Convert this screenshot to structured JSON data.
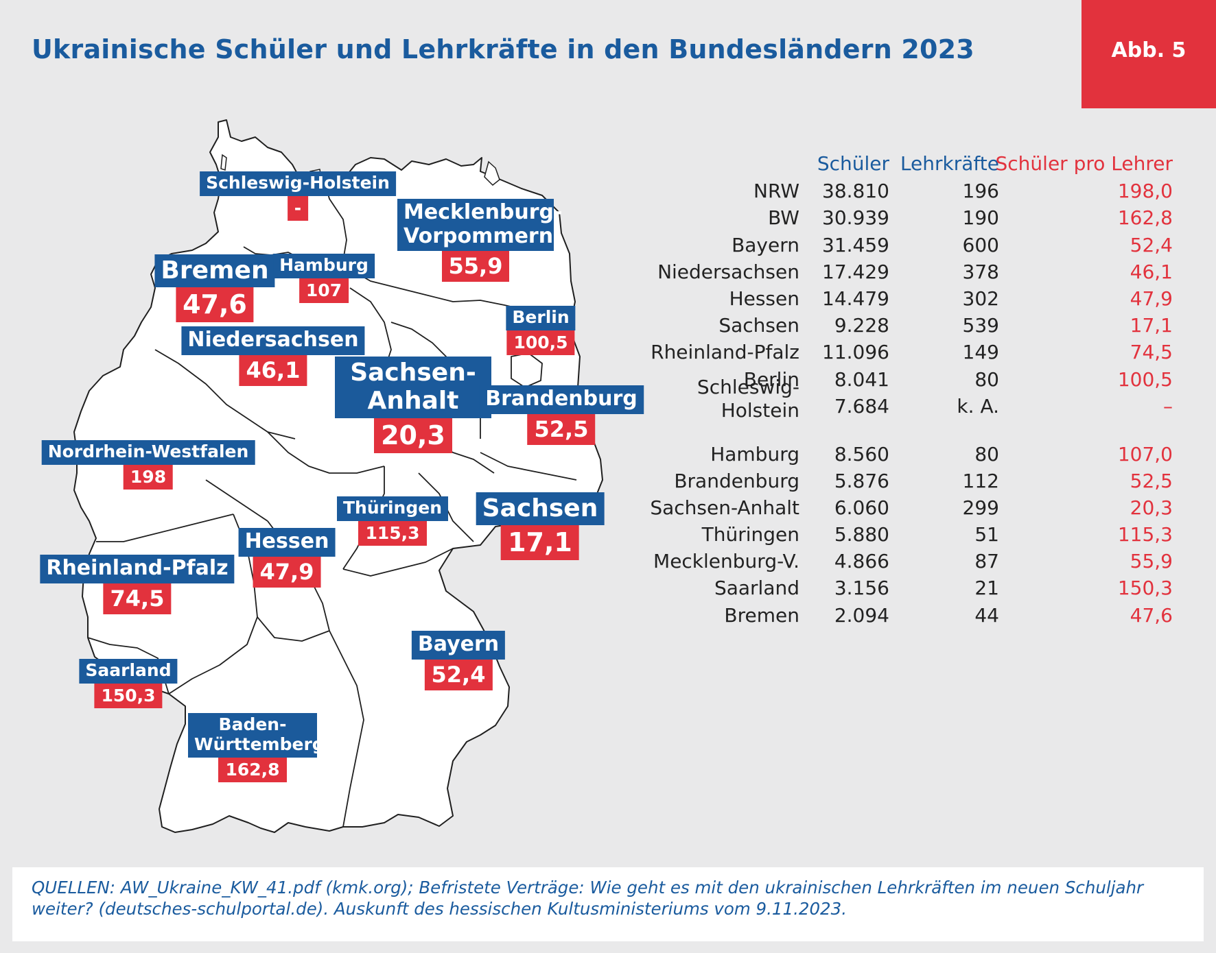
{
  "header": {
    "title": "Ukrainische Schüler und Lehrkräfte in den Bundesländern 2023",
    "figure_tag": "Abb. 5"
  },
  "map": {
    "country": "Deutschland",
    "regions": [
      {
        "id": "sh",
        "name": "Schleswig-Holstein",
        "value": "-"
      },
      {
        "id": "mv",
        "name": "Mecklenburg-Vorpommern",
        "value": "55,9"
      },
      {
        "id": "hb",
        "name": "Bremen",
        "value": "47,6"
      },
      {
        "id": "hh",
        "name": "Hamburg",
        "value": "107"
      },
      {
        "id": "be",
        "name": "Berlin",
        "value": "100,5"
      },
      {
        "id": "ni",
        "name": "Niedersachsen",
        "value": "46,1"
      },
      {
        "id": "st",
        "name": "Sachsen-Anhalt",
        "value": "20,3"
      },
      {
        "id": "bb",
        "name": "Brandenburg",
        "value": "52,5"
      },
      {
        "id": "nw",
        "name": "Nordrhein-Westfalen",
        "value": "198"
      },
      {
        "id": "th",
        "name": "Thüringen",
        "value": "115,3"
      },
      {
        "id": "sn",
        "name": "Sachsen",
        "value": "17,1"
      },
      {
        "id": "he",
        "name": "Hessen",
        "value": "47,9"
      },
      {
        "id": "rp",
        "name": "Rheinland-Pfalz",
        "value": "74,5"
      },
      {
        "id": "by",
        "name": "Bayern",
        "value": "52,4"
      },
      {
        "id": "sl",
        "name": "Saarland",
        "value": "150,3"
      },
      {
        "id": "bw",
        "name": "Baden-Württemberg",
        "value": "162,8"
      }
    ],
    "colors": {
      "land": "#ffffff",
      "border": "#1f1f1f",
      "label_bg": "#1b5a9b",
      "value_bg": "#e2323d"
    }
  },
  "table": {
    "headers": {
      "students": "Schüler",
      "teachers": "Lehrkräfte",
      "ratio": "Schüler pro Lehrer"
    },
    "header_colors": {
      "students": "#1a5b9e",
      "teachers": "#1a5b9e",
      "ratio": "#e2323d"
    },
    "rows": [
      {
        "state": "NRW",
        "students": "38.810",
        "teachers": "196",
        "ratio": "198,0"
      },
      {
        "state": "BW",
        "students": "30.939",
        "teachers": "190",
        "ratio": "162,8"
      },
      {
        "state": "Bayern",
        "students": "31.459",
        "teachers": "600",
        "ratio": "52,4"
      },
      {
        "state": "Niedersachsen",
        "students": "17.429",
        "teachers": "378",
        "ratio": "46,1"
      },
      {
        "state": "Hessen",
        "students": "14.479",
        "teachers": "302",
        "ratio": "47,9"
      },
      {
        "state": "Sachsen",
        "students": "9.228",
        "teachers": "539",
        "ratio": "17,1"
      },
      {
        "state": "Rheinland-Pfalz",
        "students": "11.096",
        "teachers": "149",
        "ratio": "74,5"
      },
      {
        "state": "Berlin",
        "students": "8.041",
        "teachers": "80",
        "ratio": "100,5"
      },
      {
        "state": "Schleswig-Holstein",
        "state_lines": [
          "Schleswig-",
          "Holstein"
        ],
        "students": "7.684",
        "teachers": "k. A.",
        "ratio": "–"
      },
      {
        "state": "Hamburg",
        "students": "8.560",
        "teachers": "80",
        "ratio": "107,0"
      },
      {
        "state": "Brandenburg",
        "students": "5.876",
        "teachers": "112",
        "ratio": "52,5"
      },
      {
        "state": "Sachsen-Anhalt",
        "students": "6.060",
        "teachers": "299",
        "ratio": "20,3"
      },
      {
        "state": "Thüringen",
        "students": "5.880",
        "teachers": "51",
        "ratio": "115,3"
      },
      {
        "state": "Mecklenburg-V.",
        "students": "4.866",
        "teachers": "87",
        "ratio": "55,9"
      },
      {
        "state": "Saarland",
        "students": "3.156",
        "teachers": "21",
        "ratio": "150,3"
      },
      {
        "state": "Bremen",
        "students": "2.094",
        "teachers": "44",
        "ratio": "47,6"
      }
    ]
  },
  "footer": {
    "sources": "QUELLEN: AW_Ukraine_KW_41.pdf (kmk.org); Befristete Verträge: Wie geht es mit den ukrainischen Lehrkräften im neuen Schuljahr weiter? (deutsches-schulportal.de). Auskunft des hessischen Kultusministeriums vom 9.11.2023."
  }
}
